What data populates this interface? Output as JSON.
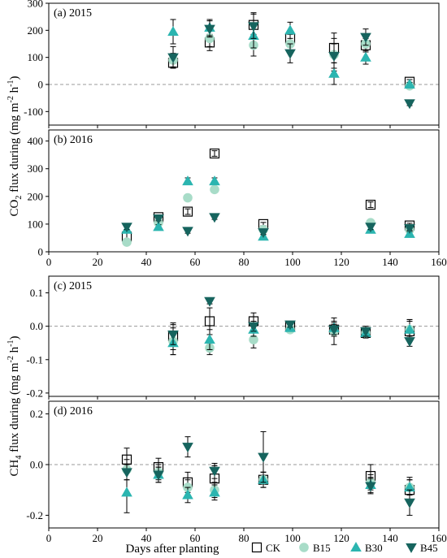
{
  "figure": {
    "xlabel": "Days after planting",
    "ylabel_co2": {
      "main": "CO",
      "sub": "2",
      "rest": " flux during (mg m",
      "sup1": "-2",
      "mid": " h",
      "sup2": "-1",
      "end": ")"
    },
    "ylabel_ch4": {
      "main": "CH",
      "sub": "4",
      "rest": " flux during (mg m",
      "sup1": "-2",
      "mid": " h",
      "sup2": "-1",
      "end": ")"
    }
  },
  "legend": [
    {
      "name": "CK",
      "marker": "square-open",
      "color": "#000000"
    },
    {
      "name": "B15",
      "marker": "circle",
      "color": "#a8dcc8"
    },
    {
      "name": "B30",
      "marker": "triangle-up",
      "color": "#2bb5b0"
    },
    {
      "name": "B45",
      "marker": "triangle-down",
      "color": "#16645e"
    }
  ],
  "colors": {
    "CK": "#000000",
    "B15": "#a8dcc8",
    "B30": "#2bb5b0",
    "B45": "#16645e",
    "zero_line": "#9a9a9a"
  },
  "chart_data": [
    {
      "type": "scatter",
      "panel_label": "(a) 2015",
      "xlim": [
        0,
        160
      ],
      "ylim": [
        -150,
        300
      ],
      "yticks": [
        -100,
        0,
        100,
        200,
        300
      ],
      "xticks": [
        0,
        20,
        40,
        60,
        80,
        100,
        120,
        140,
        160
      ],
      "show_xticklabels": false,
      "series": [
        {
          "name": "CK",
          "x": [
            51,
            66,
            84,
            99,
            117,
            130,
            148
          ],
          "y": [
            80,
            155,
            220,
            170,
            135,
            145,
            10
          ],
          "err": [
            20,
            30,
            45,
            30,
            55,
            25,
            8
          ]
        },
        {
          "name": "B15",
          "x": [
            51,
            66,
            84,
            99,
            117,
            130,
            148
          ],
          "y": [
            90,
            170,
            145,
            150,
            110,
            150,
            -5
          ],
          "err": [
            25,
            30,
            40,
            35,
            60,
            30,
            8
          ]
        },
        {
          "name": "B30",
          "x": [
            51,
            66,
            84,
            99,
            117,
            130,
            148
          ],
          "y": [
            195,
            210,
            180,
            200,
            40,
            100,
            0
          ],
          "err": [
            45,
            30,
            45,
            30,
            40,
            25,
            8
          ]
        },
        {
          "name": "B45",
          "x": [
            51,
            66,
            84,
            99,
            117,
            130,
            148
          ],
          "y": [
            100,
            205,
            215,
            115,
            105,
            175,
            -70
          ],
          "err": [
            40,
            30,
            45,
            35,
            45,
            30,
            8
          ]
        }
      ]
    },
    {
      "type": "scatter",
      "panel_label": "(b) 2016",
      "xlim": [
        0,
        160
      ],
      "ylim": [
        0,
        440
      ],
      "yticks": [
        0,
        100,
        200,
        300,
        400
      ],
      "xticks": [
        0,
        20,
        40,
        60,
        80,
        100,
        120,
        140,
        160
      ],
      "show_xticklabels": true,
      "series": [
        {
          "name": "CK",
          "x": [
            32,
            45,
            57,
            68,
            88,
            132,
            148
          ],
          "y": [
            55,
            125,
            145,
            355,
            100,
            170,
            95
          ],
          "err": [
            15,
            8,
            10,
            10,
            6,
            10,
            8
          ]
        },
        {
          "name": "B15",
          "x": [
            32,
            45,
            57,
            68,
            88,
            132,
            148
          ],
          "y": [
            35,
            105,
            195,
            225,
            80,
            105,
            80
          ],
          "err": [
            10,
            8,
            10,
            10,
            8,
            10,
            8
          ]
        },
        {
          "name": "B30",
          "x": [
            32,
            45,
            57,
            68,
            88,
            132,
            148
          ],
          "y": [
            80,
            90,
            255,
            255,
            55,
            80,
            65
          ],
          "err": [
            10,
            8,
            12,
            12,
            8,
            10,
            8
          ]
        },
        {
          "name": "B45",
          "x": [
            32,
            45,
            57,
            68,
            88,
            132,
            148
          ],
          "y": [
            90,
            120,
            75,
            125,
            70,
            90,
            85
          ],
          "err": [
            10,
            8,
            8,
            8,
            8,
            10,
            8
          ]
        }
      ]
    },
    {
      "type": "scatter",
      "panel_label": "(c) 2015",
      "xlim": [
        0,
        160
      ],
      "ylim": [
        -0.21,
        0.15
      ],
      "yticks": [
        -0.2,
        -0.1,
        0.0,
        0.1
      ],
      "ytick_labels": [
        "-0.2",
        "-0.1",
        "0.0",
        "0.1"
      ],
      "xticks": [
        0,
        20,
        40,
        60,
        80,
        100,
        120,
        140,
        160
      ],
      "show_xticklabels": false,
      "series": [
        {
          "name": "CK",
          "x": [
            51,
            66,
            84,
            99,
            117,
            130,
            148
          ],
          "y": [
            -0.03,
            0.015,
            0.015,
            0.0,
            -0.01,
            -0.02,
            -0.015
          ],
          "err": [
            0.04,
            0.04,
            0.025,
            0.01,
            0.02,
            0.015,
            0.03
          ]
        },
        {
          "name": "B15",
          "x": [
            51,
            66,
            84,
            99,
            117,
            130,
            148
          ],
          "y": [
            -0.045,
            -0.065,
            -0.04,
            -0.01,
            -0.015,
            -0.02,
            -0.01
          ],
          "err": [
            0.04,
            0.02,
            0.025,
            0.01,
            0.04,
            0.015,
            0.03
          ]
        },
        {
          "name": "B30",
          "x": [
            51,
            66,
            84,
            99,
            117,
            130,
            148
          ],
          "y": [
            -0.05,
            -0.04,
            -0.01,
            -0.005,
            -0.005,
            -0.02,
            -0.01
          ],
          "err": [
            0.035,
            0.03,
            0.02,
            0.01,
            0.02,
            0.015,
            0.03
          ]
        },
        {
          "name": "B45",
          "x": [
            51,
            66,
            84,
            99,
            117,
            130,
            148
          ],
          "y": [
            -0.025,
            0.075,
            0.0,
            0.005,
            -0.01,
            -0.015,
            -0.045
          ],
          "err": [
            0.03,
            0.008,
            0.015,
            0.008,
            0.015,
            0.015,
            0.015
          ]
        }
      ]
    },
    {
      "type": "scatter",
      "panel_label": "(d) 2016",
      "xlim": [
        0,
        160
      ],
      "ylim": [
        -0.25,
        0.25
      ],
      "yticks": [
        -0.2,
        0.0,
        0.2
      ],
      "ytick_labels": [
        "-0.2",
        "0.0",
        "0.2"
      ],
      "xticks": [
        0,
        20,
        40,
        60,
        80,
        100,
        120,
        140,
        160
      ],
      "xtick_labels": [
        "0",
        "20",
        "40",
        "60",
        "80",
        "100",
        "120",
        "140",
        "160"
      ],
      "show_xticklabels": true,
      "series": [
        {
          "name": "CK",
          "x": [
            32,
            45,
            57,
            68,
            88,
            132,
            148
          ],
          "y": [
            0.02,
            -0.01,
            -0.07,
            -0.055,
            -0.06,
            -0.045,
            -0.1
          ],
          "err": [
            0.045,
            0.035,
            0.04,
            0.05,
            0.03,
            0.045,
            0.05
          ]
        },
        {
          "name": "B15",
          "x": [
            32,
            45,
            57,
            68,
            88,
            132,
            148
          ],
          "y": [
            -0.02,
            -0.03,
            -0.09,
            -0.1,
            -0.06,
            -0.07,
            -0.09
          ],
          "err": [
            0.04,
            0.03,
            0.03,
            0.03,
            0.03,
            0.03,
            0.03
          ]
        },
        {
          "name": "B30",
          "x": [
            32,
            45,
            57,
            68,
            88,
            132,
            148
          ],
          "y": [
            -0.11,
            -0.04,
            -0.12,
            -0.11,
            -0.06,
            -0.08,
            -0.09
          ],
          "err": [
            0.08,
            0.03,
            0.03,
            0.03,
            0.03,
            0.03,
            0.03
          ]
        },
        {
          "name": "B45",
          "x": [
            32,
            45,
            57,
            68,
            88,
            132,
            148
          ],
          "y": [
            -0.03,
            -0.04,
            0.07,
            -0.025,
            0.03,
            -0.085,
            -0.15
          ],
          "err": [
            0.03,
            0.03,
            0.04,
            0.03,
            0.1,
            0.03,
            0.05
          ]
        }
      ]
    }
  ]
}
